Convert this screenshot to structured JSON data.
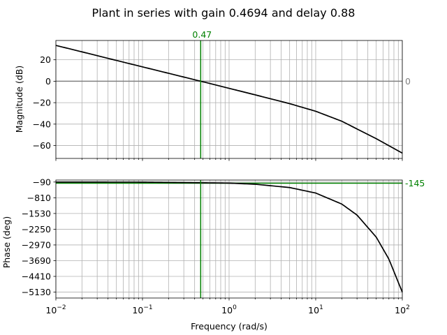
{
  "chart_data": [
    {
      "type": "line",
      "panel": "magnitude",
      "title": "Plant in series with gain 0.4694 and delay 0.88",
      "xlabel": "",
      "ylabel": "Magnitude (dB)",
      "xscale": "log",
      "xlim": [
        0.01,
        100
      ],
      "ylim": [
        -72,
        38
      ],
      "yticks": [
        20,
        0,
        -20,
        -40,
        -60
      ],
      "ytick_labels": [
        "20",
        "0",
        "−20",
        "−40",
        "−60"
      ],
      "grid": true,
      "series": [
        {
          "color": "#000000",
          "x": [
            0.01,
            0.02,
            0.05,
            0.1,
            0.2,
            0.47,
            1,
            2,
            5,
            10,
            20,
            50,
            100
          ],
          "y": [
            33.4,
            27.4,
            19.4,
            13.4,
            7.4,
            0.0,
            -6.6,
            -12.7,
            -20.9,
            -28.0,
            -37.3,
            -53.6,
            -67.0
          ]
        }
      ],
      "annotations": {
        "crossover_frequency": 0.47,
        "crossover_label": "0.47",
        "reference_level": 0,
        "reference_label": "0"
      },
      "colors": {
        "marker_line": "#008000",
        "reference_line": "#808080",
        "grid": "#b0b0b0"
      }
    },
    {
      "type": "line",
      "panel": "phase",
      "xlabel": "Frequency (rad/s)",
      "ylabel": "Phase (deg)",
      "xscale": "log",
      "xlim": [
        0.01,
        100
      ],
      "ylim": [
        -5400,
        0
      ],
      "xticks": [
        0.01,
        0.1,
        1,
        10,
        100
      ],
      "xtick_labels": [
        {
          "base": "10",
          "exp": "−2"
        },
        {
          "base": "10",
          "exp": "−1"
        },
        {
          "base": "10",
          "exp": "0"
        },
        {
          "base": "10",
          "exp": "1"
        },
        {
          "base": "10",
          "exp": "2"
        }
      ],
      "yticks": [
        -90,
        -810,
        -1530,
        -2250,
        -2970,
        -3690,
        -4410,
        -5130
      ],
      "ytick_labels": [
        "−90",
        "−810",
        "−1530",
        "−2250",
        "−2970",
        "−3690",
        "−4410",
        "−5130"
      ],
      "grid": true,
      "series": [
        {
          "color": "#000000",
          "x": [
            0.01,
            0.1,
            1,
            2,
            5,
            10,
            20,
            30,
            50,
            70,
            100
          ],
          "y": [
            -90.5,
            -95,
            -140,
            -191,
            -342,
            -594,
            -1098,
            -1602,
            -2611,
            -3619,
            -5132
          ]
        }
      ],
      "annotations": {
        "crossover_frequency": 0.47,
        "phase_level": -145,
        "phase_label": "-145"
      },
      "colors": {
        "marker_line": "#008000",
        "grid": "#b0b0b0"
      }
    }
  ]
}
